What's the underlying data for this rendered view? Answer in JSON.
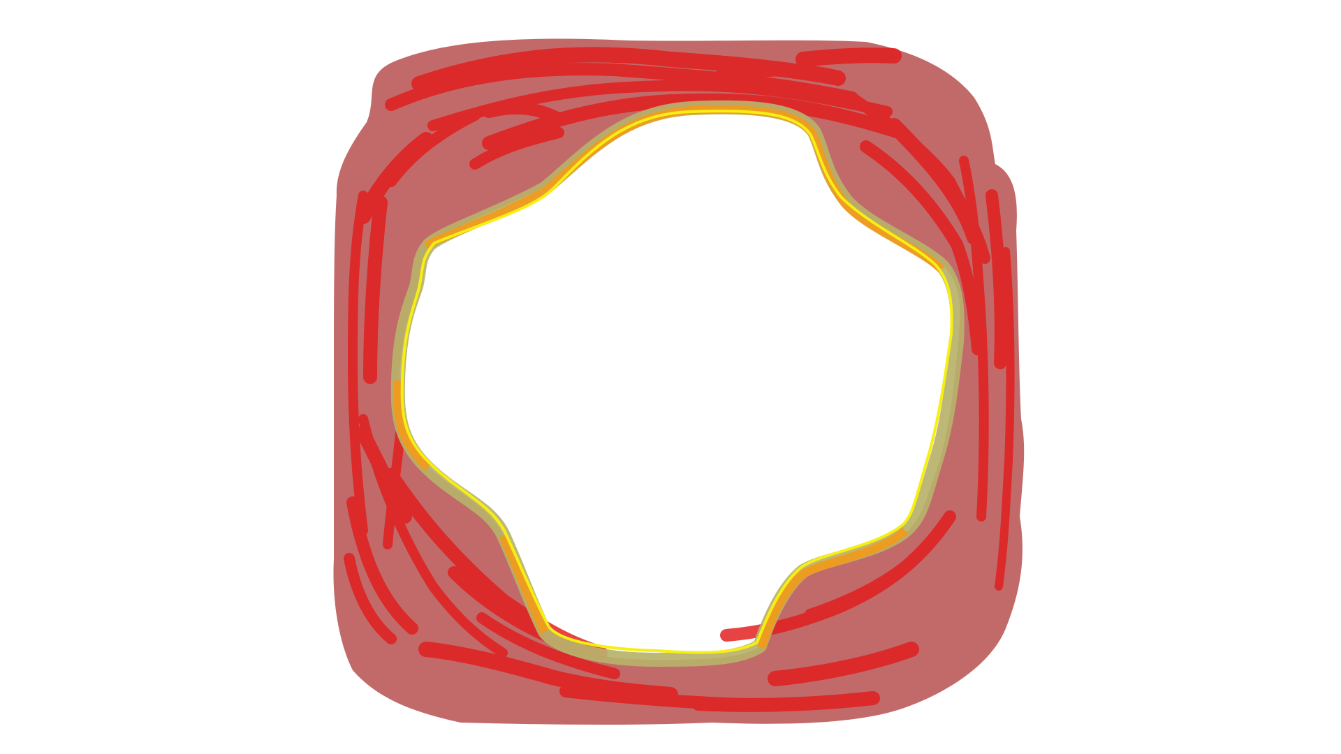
{
  "drawing": {
    "background_color": "#ffffff",
    "layers": [
      {
        "name": "outer-ring-fill",
        "color": "#c26a6a"
      },
      {
        "name": "red-scribble-strokes",
        "color": "#e21b1b"
      },
      {
        "name": "inner-olive-band",
        "color": "#b9b26b"
      },
      {
        "name": "orange-highlight-band",
        "color": "#f29a1a"
      },
      {
        "name": "yellow-outline",
        "color": "#f7ef12"
      }
    ]
  }
}
